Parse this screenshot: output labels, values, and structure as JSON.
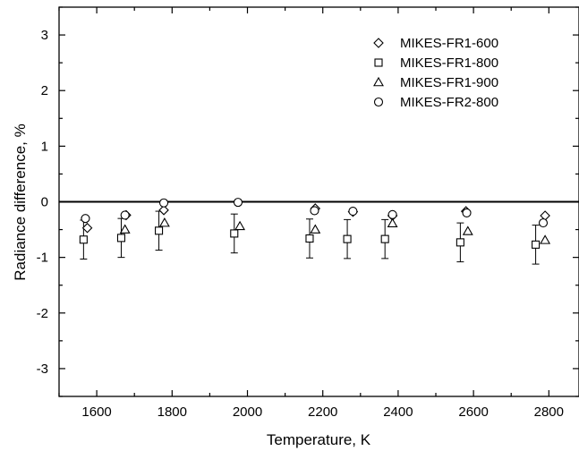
{
  "chart_data": {
    "type": "scatter",
    "xlabel": "Temperature, K",
    "ylabel": "Radiance difference, %",
    "xlim": [
      1500,
      2880
    ],
    "ylim": [
      -3.5,
      3.5
    ],
    "xticks": [
      1600,
      1800,
      2000,
      2200,
      2400,
      2600,
      2800
    ],
    "yticks": [
      -3,
      -2,
      -1,
      0,
      1,
      2,
      3
    ],
    "x_tick_labels": [
      "1600",
      "1800",
      "2000",
      "2200",
      "2400",
      "2600",
      "2800"
    ],
    "y_tick_labels": [
      "-3",
      "-2",
      "-1",
      "0",
      "1",
      "2",
      "3"
    ],
    "reference_line": 0,
    "grid": false,
    "legend_position": "top-right",
    "series": [
      {
        "name": "MIKES-FR1-600",
        "marker": "diamond",
        "x": [
          1575,
          1678,
          1778,
          2180,
          2280,
          2385,
          2580,
          2790
        ],
        "y": [
          -0.47,
          -0.24,
          -0.15,
          -0.12,
          -0.18,
          -0.25,
          -0.17,
          -0.25
        ]
      },
      {
        "name": "MIKES-FR1-800",
        "marker": "square",
        "x": [
          1565,
          1665,
          1765,
          1965,
          2165,
          2265,
          2365,
          2565,
          2765
        ],
        "y": [
          -0.68,
          -0.65,
          -0.52,
          -0.57,
          -0.66,
          -0.67,
          -0.67,
          -0.73,
          -0.77
        ],
        "error": [
          0.35,
          0.35,
          0.35,
          0.35,
          0.35,
          0.35,
          0.35,
          0.35,
          0.35
        ]
      },
      {
        "name": "MIKES-FR1-900",
        "marker": "triangle",
        "x": [
          1675,
          1780,
          1980,
          2180,
          2385,
          2585,
          2790
        ],
        "y": [
          -0.5,
          -0.38,
          -0.44,
          -0.5,
          -0.39,
          -0.53,
          -0.69
        ]
      },
      {
        "name": "MIKES-FR2-800",
        "marker": "circle",
        "x": [
          1570,
          1675,
          1778,
          1975,
          2178,
          2280,
          2385,
          2582,
          2785
        ],
        "y": [
          -0.3,
          -0.24,
          -0.02,
          -0.01,
          -0.16,
          -0.17,
          -0.23,
          -0.2,
          -0.38
        ]
      }
    ]
  }
}
